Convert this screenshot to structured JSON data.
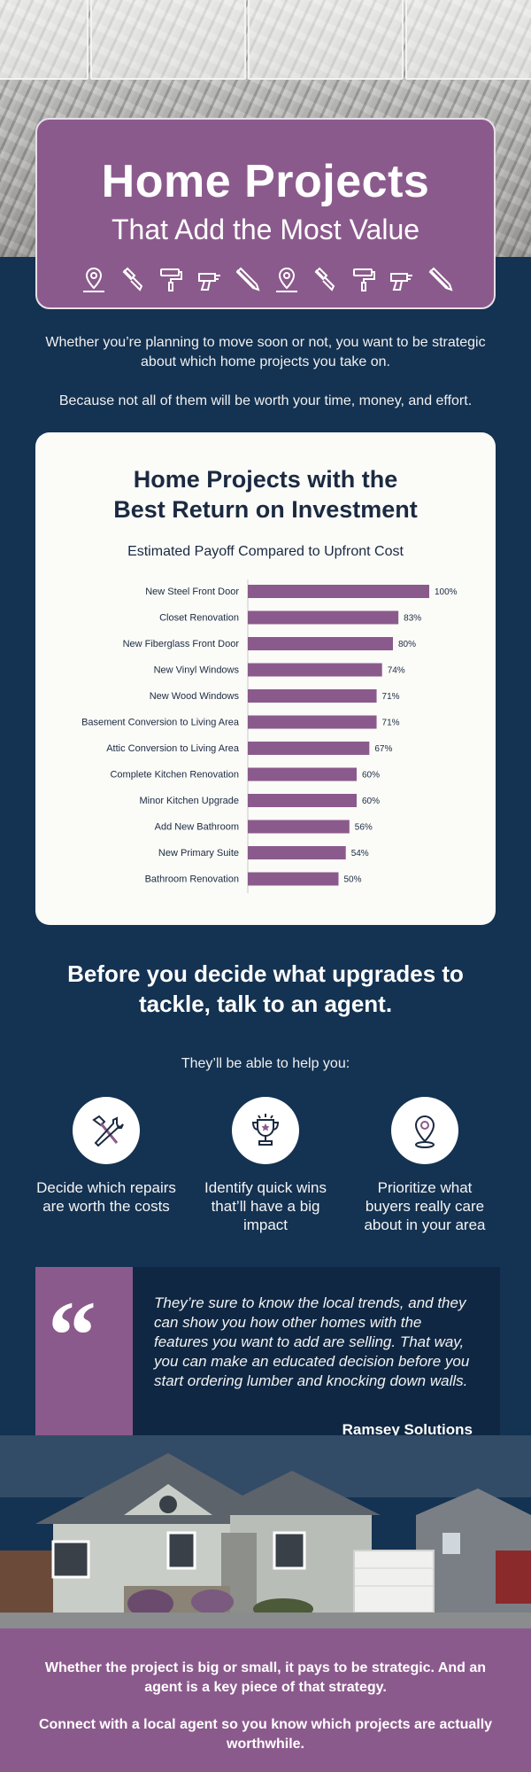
{
  "header": {
    "title": "Home Projects",
    "subtitle": "That Add the Most Value",
    "icons": [
      "location-pin-icon",
      "paint-brush-icon",
      "paint-roller-icon",
      "drill-icon",
      "hand-saw-icon",
      "location-pin-icon",
      "paint-brush-icon",
      "paint-roller-icon",
      "drill-icon",
      "hand-saw-icon"
    ]
  },
  "intro": {
    "p1": "Whether you’re planning to move soon or not, you want to be strategic about which home projects you take on.",
    "p2": "Because not all of them will be worth your time, money, and effort."
  },
  "chart_data": {
    "type": "bar",
    "orientation": "horizontal",
    "title_line1": "Home Projects with the",
    "title_line2": "Best Return on Investment",
    "subtitle": "Estimated Payoff Compared to Upfront Cost",
    "categories": [
      "New Steel Front Door",
      "Closet Renovation",
      "New Fiberglass Front Door",
      "New Vinyl Windows",
      "New Wood Windows",
      "Basement Conversion to Living Area",
      "Attic Conversion to Living Area",
      "Complete Kitchen Renovation",
      "Minor Kitchen Upgrade",
      "Add New Bathroom",
      "New Primary Suite",
      "Bathroom Renovation"
    ],
    "values": [
      100,
      83,
      80,
      74,
      71,
      71,
      67,
      60,
      60,
      56,
      54,
      50
    ],
    "value_labels": [
      "100%",
      "83%",
      "80%",
      "74%",
      "71%",
      "71%",
      "67%",
      "60%",
      "60%",
      "56%",
      "54%",
      "50%"
    ],
    "xlim": [
      0,
      100
    ],
    "bar_color": "#8b5a8c",
    "grid": false
  },
  "agent": {
    "heading": "Before you decide what upgrades to tackle, talk to an agent.",
    "sub": "They’ll be able to help you:",
    "benefits": [
      {
        "icon": "hammer-wrench-icon",
        "label": "Decide which repairs are worth the costs"
      },
      {
        "icon": "trophy-icon",
        "label": "Identify quick wins that’ll have a big impact"
      },
      {
        "icon": "map-pin-icon",
        "label": "Prioritize what buyers really care about in your area"
      }
    ]
  },
  "quote": {
    "mark": "“",
    "text": "They’re sure to know the local trends, and they can show you how other homes with the features you want to add are selling. That way, you can make an educated decision before you start ordering lumber and knocking down walls.",
    "author": "Ramsey Solutions"
  },
  "footer": {
    "p1": "Whether the project is big or small, it pays to be strategic. And an agent is a key piece of that strategy.",
    "p2": "Connect with a local agent so you know which projects are actually worthwhile."
  },
  "colors": {
    "navy": "#143251",
    "purple": "#8b5a8c",
    "card": "#fbfbf8"
  }
}
